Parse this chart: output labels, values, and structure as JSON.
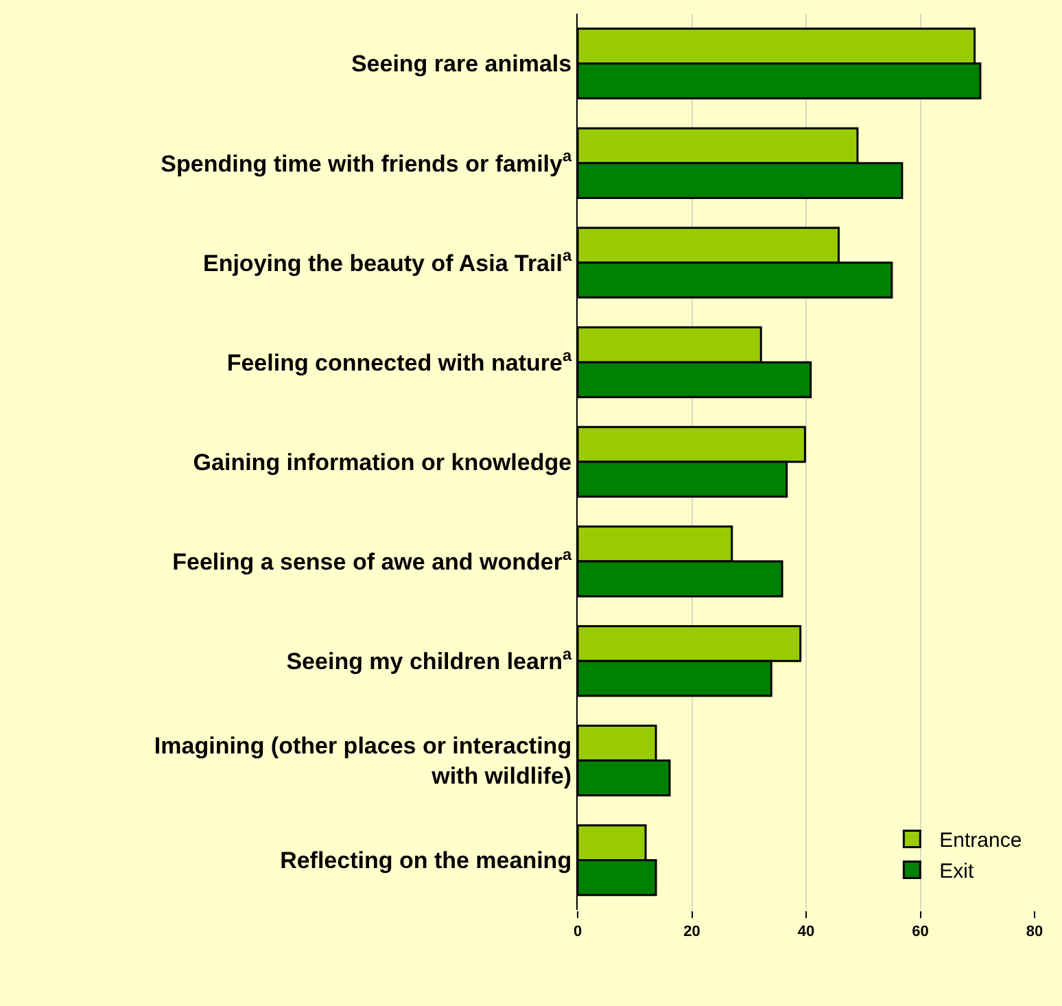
{
  "chart_data": {
    "type": "bar",
    "orientation": "horizontal",
    "categories": [
      "Seeing rare animals",
      "Spending time with friends or family$^{a}$",
      "Enjoying the beauty of Asia Trail$^{a}$",
      "Feeling connected with nature$^{a}$",
      "Gaining information or knowledge",
      "Feeling a sense of awe and wonder$^{a}$",
      "Seeing my children learn$^{a}$",
      "Imagining (other places or interacting with wildlife)",
      "Reflecting on the meaning"
    ],
    "series": [
      {
        "name": "Entrance",
        "color": "#99cc00",
        "values": [
          69.5,
          49,
          45.7,
          32.1,
          39.8,
          27,
          39,
          13.7,
          11.9
        ]
      },
      {
        "name": "Exit",
        "color": "#008000",
        "values": [
          70.5,
          56.8,
          55,
          40.8,
          36.6,
          35.8,
          33.9,
          16.1,
          13.7
        ]
      }
    ],
    "xlim": [
      0,
      80
    ],
    "xticks": [
      0,
      20,
      40,
      60,
      80
    ],
    "grid": "x",
    "legend": "bottom right"
  }
}
